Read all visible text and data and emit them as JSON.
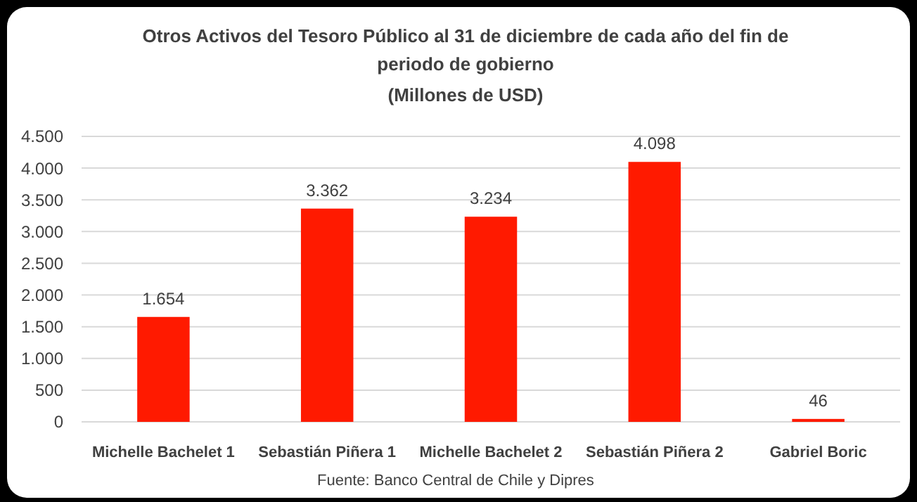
{
  "chart_data": {
    "type": "bar",
    "title": "Otros Activos del Tesoro Público al 31 de diciembre de cada año del fin de periodo de gobierno",
    "subtitle": "(Millones de USD)",
    "categories": [
      "Michelle Bachelet 1",
      "Sebastián Piñera 1",
      "Michelle Bachelet 2",
      "Sebastián Piñera 2",
      "Gabriel Boric"
    ],
    "values": [
      1654,
      3362,
      3234,
      4098,
      46
    ],
    "color": "#ff1a00",
    "value_labels": [
      "1.654",
      "3.362",
      "3.234",
      "4.098",
      "46"
    ],
    "ylim": [
      0,
      4500
    ],
    "yticks": [
      {
        "value": 0,
        "label": "0"
      },
      {
        "value": 500,
        "label": "500"
      },
      {
        "value": 1000,
        "label": "1.000"
      },
      {
        "value": 1500,
        "label": "1.500"
      },
      {
        "value": 2000,
        "label": "2.000"
      },
      {
        "value": 2500,
        "label": "2.500"
      },
      {
        "value": 3000,
        "label": "3.000"
      },
      {
        "value": 3500,
        "label": "3.500"
      },
      {
        "value": 4000,
        "label": "4.000"
      },
      {
        "value": 4500,
        "label": "4.500"
      }
    ],
    "grid": "y",
    "annotations": [
      "Fuente: Banco Central de Chile y Dipres"
    ]
  }
}
